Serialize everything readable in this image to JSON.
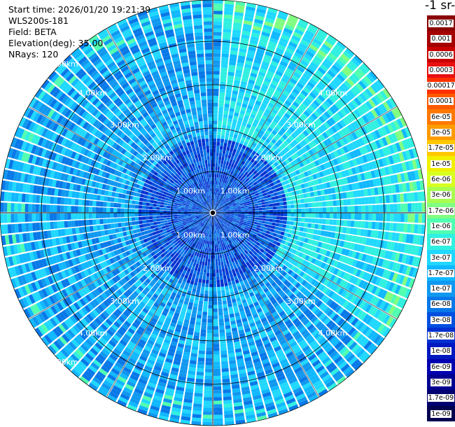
{
  "info": {
    "start_time": "Start time: 2026/01/20 19:21:39",
    "instrument": "WLS200s-181",
    "field": "Field: BETA",
    "elevation": "Elevation(deg): 35.00",
    "nrays": "NRays: 120"
  },
  "colorbar": {
    "title": "-1 sr-",
    "labels": [
      "0.0017",
      "0.001",
      "0.0006",
      "0.0003",
      "0.00017",
      "0.0001",
      "6e-05",
      "3e-05",
      "1.7e-05",
      "1e-05",
      "6e-06",
      "3e-06",
      "1.7e-06",
      "1e-06",
      "6e-07",
      "3e-07",
      "1.7e-07",
      "1e-07",
      "6e-08",
      "3e-08",
      "1.7e-08",
      "1e-08",
      "6e-09",
      "3e-09",
      "1.7e-09",
      "1e-09"
    ],
    "colors": [
      "#8b0000",
      "#a40000",
      "#c80000",
      "#e81010",
      "#ff3000",
      "#ff5a00",
      "#ff7800",
      "#ff9a00",
      "#ffc800",
      "#f0f000",
      "#d8ff20",
      "#a8ff50",
      "#80ff80",
      "#50ffb0",
      "#30f0e0",
      "#20d8ff",
      "#10b8ff",
      "#1098f0",
      "#0878e8",
      "#0050e0",
      "#0030d0",
      "#0018c0",
      "#0000b0",
      "#000090",
      "#000070",
      "#000050"
    ]
  },
  "ring_labels": [
    "1.00km",
    "2.00km",
    "3.00km",
    "4.00km",
    "5.00km"
  ]
}
